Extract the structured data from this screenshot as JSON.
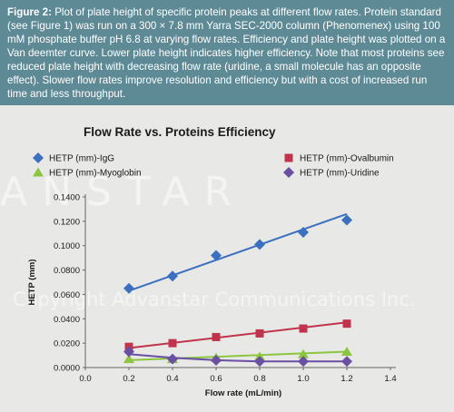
{
  "caption": {
    "label": "Figure 2:",
    "text": " Plot of plate height of specific protein peaks at different flow rates. Protein standard (see Figure 1) was run on a 300 × 7.8 mm Yarra SEC-2000 column (Phenomenex) using 100 mM phosphate buffer pH 6.8 at varying flow rates. Efficiency and plate height was plotted on a Van deemter curve. Lower plate height indicates higher efficiency. Note that most proteins see reduced plate height with decreasing flow rate (uridine, a small molecule has an opposite effect). Slower flow rates improve resolution and efficiency but with a cost of increased run time and less throughput.",
    "background": "#5e8a96"
  },
  "watermark": {
    "brand": "ANSTAR",
    "copyright": "Copyright Advanstar Communications Inc."
  },
  "chart_data": {
    "type": "scatter",
    "title": "Flow Rate vs. Proteins Efficiency",
    "xlabel": "Flow rate (mL/min)",
    "ylabel": "HETP (mm)",
    "xlim": [
      0.0,
      1.4
    ],
    "ylim": [
      0.0,
      0.14
    ],
    "x_ticks": [
      "0.0",
      "0.2",
      "0.4",
      "0.6",
      "0.8",
      "1.0",
      "1.2",
      "1.4"
    ],
    "y_ticks": [
      "0.0000",
      "0.0200",
      "0.0400",
      "0.0600",
      "0.0800",
      "0.1000",
      "0.1200",
      "0.1400"
    ],
    "legend_position": "top",
    "series": [
      {
        "name": "HETP (mm)-IgG",
        "color": "#3b6fbf",
        "marker": "diamond",
        "x": [
          0.2,
          0.4,
          0.6,
          0.8,
          1.0,
          1.2
        ],
        "y": [
          0.065,
          0.075,
          0.092,
          0.101,
          0.111,
          0.121
        ],
        "trendline": [
          [
            0.2,
            0.063
          ],
          [
            1.2,
            0.126
          ]
        ]
      },
      {
        "name": "HETP (mm)-Ovalbumin",
        "color": "#c0334a",
        "marker": "square",
        "x": [
          0.2,
          0.4,
          0.6,
          0.8,
          1.0,
          1.2
        ],
        "y": [
          0.017,
          0.02,
          0.025,
          0.028,
          0.032,
          0.036
        ],
        "trendline": [
          [
            0.2,
            0.016
          ],
          [
            1.2,
            0.037
          ]
        ]
      },
      {
        "name": "HETP (mm)-Myoglobin",
        "color": "#8cc63f",
        "marker": "triangle",
        "x": [
          0.2,
          0.4,
          0.6,
          0.8,
          1.0,
          1.2
        ],
        "y": [
          0.007,
          0.007,
          0.008,
          0.009,
          0.011,
          0.013
        ],
        "trendline": [
          [
            0.2,
            0.006
          ],
          [
            1.2,
            0.013
          ]
        ]
      },
      {
        "name": "HETP (mm)-Uridine",
        "color": "#6a4fa3",
        "marker": "diamond",
        "x": [
          0.2,
          0.4,
          0.6,
          0.8,
          1.0,
          1.2
        ],
        "y": [
          0.013,
          0.007,
          0.006,
          0.005,
          0.005,
          0.005
        ],
        "trendline": [
          [
            0.2,
            0.011
          ],
          [
            0.4,
            0.008
          ],
          [
            0.6,
            0.006
          ],
          [
            0.8,
            0.005
          ],
          [
            1.0,
            0.005
          ],
          [
            1.2,
            0.005
          ]
        ]
      }
    ]
  }
}
